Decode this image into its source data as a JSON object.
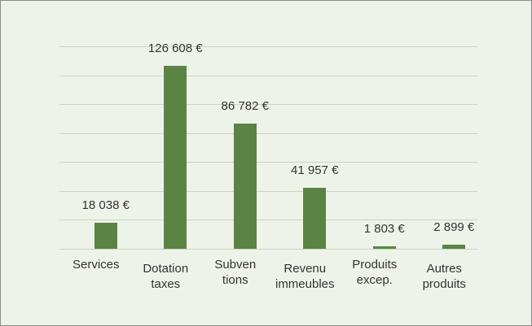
{
  "chart_data": {
    "type": "bar",
    "categories": [
      "Services",
      "Dotation\ntaxes",
      "Subven\ntions",
      "Revenu\nimmeubles",
      "Produits\nexcep.",
      "Autres\nproduits"
    ],
    "values": [
      18038,
      126608,
      86782,
      41957,
      1803,
      2899
    ],
    "value_labels": [
      "18 038 €",
      "126 608 €",
      "86 782 €",
      "41 957 €",
      "1 803 €",
      "2 899 €"
    ],
    "color": "#5b8343",
    "ylim": [
      0,
      140000
    ],
    "yticks": [
      0,
      20000,
      40000,
      60000,
      80000,
      100000,
      120000,
      140000
    ],
    "grid": true
  }
}
